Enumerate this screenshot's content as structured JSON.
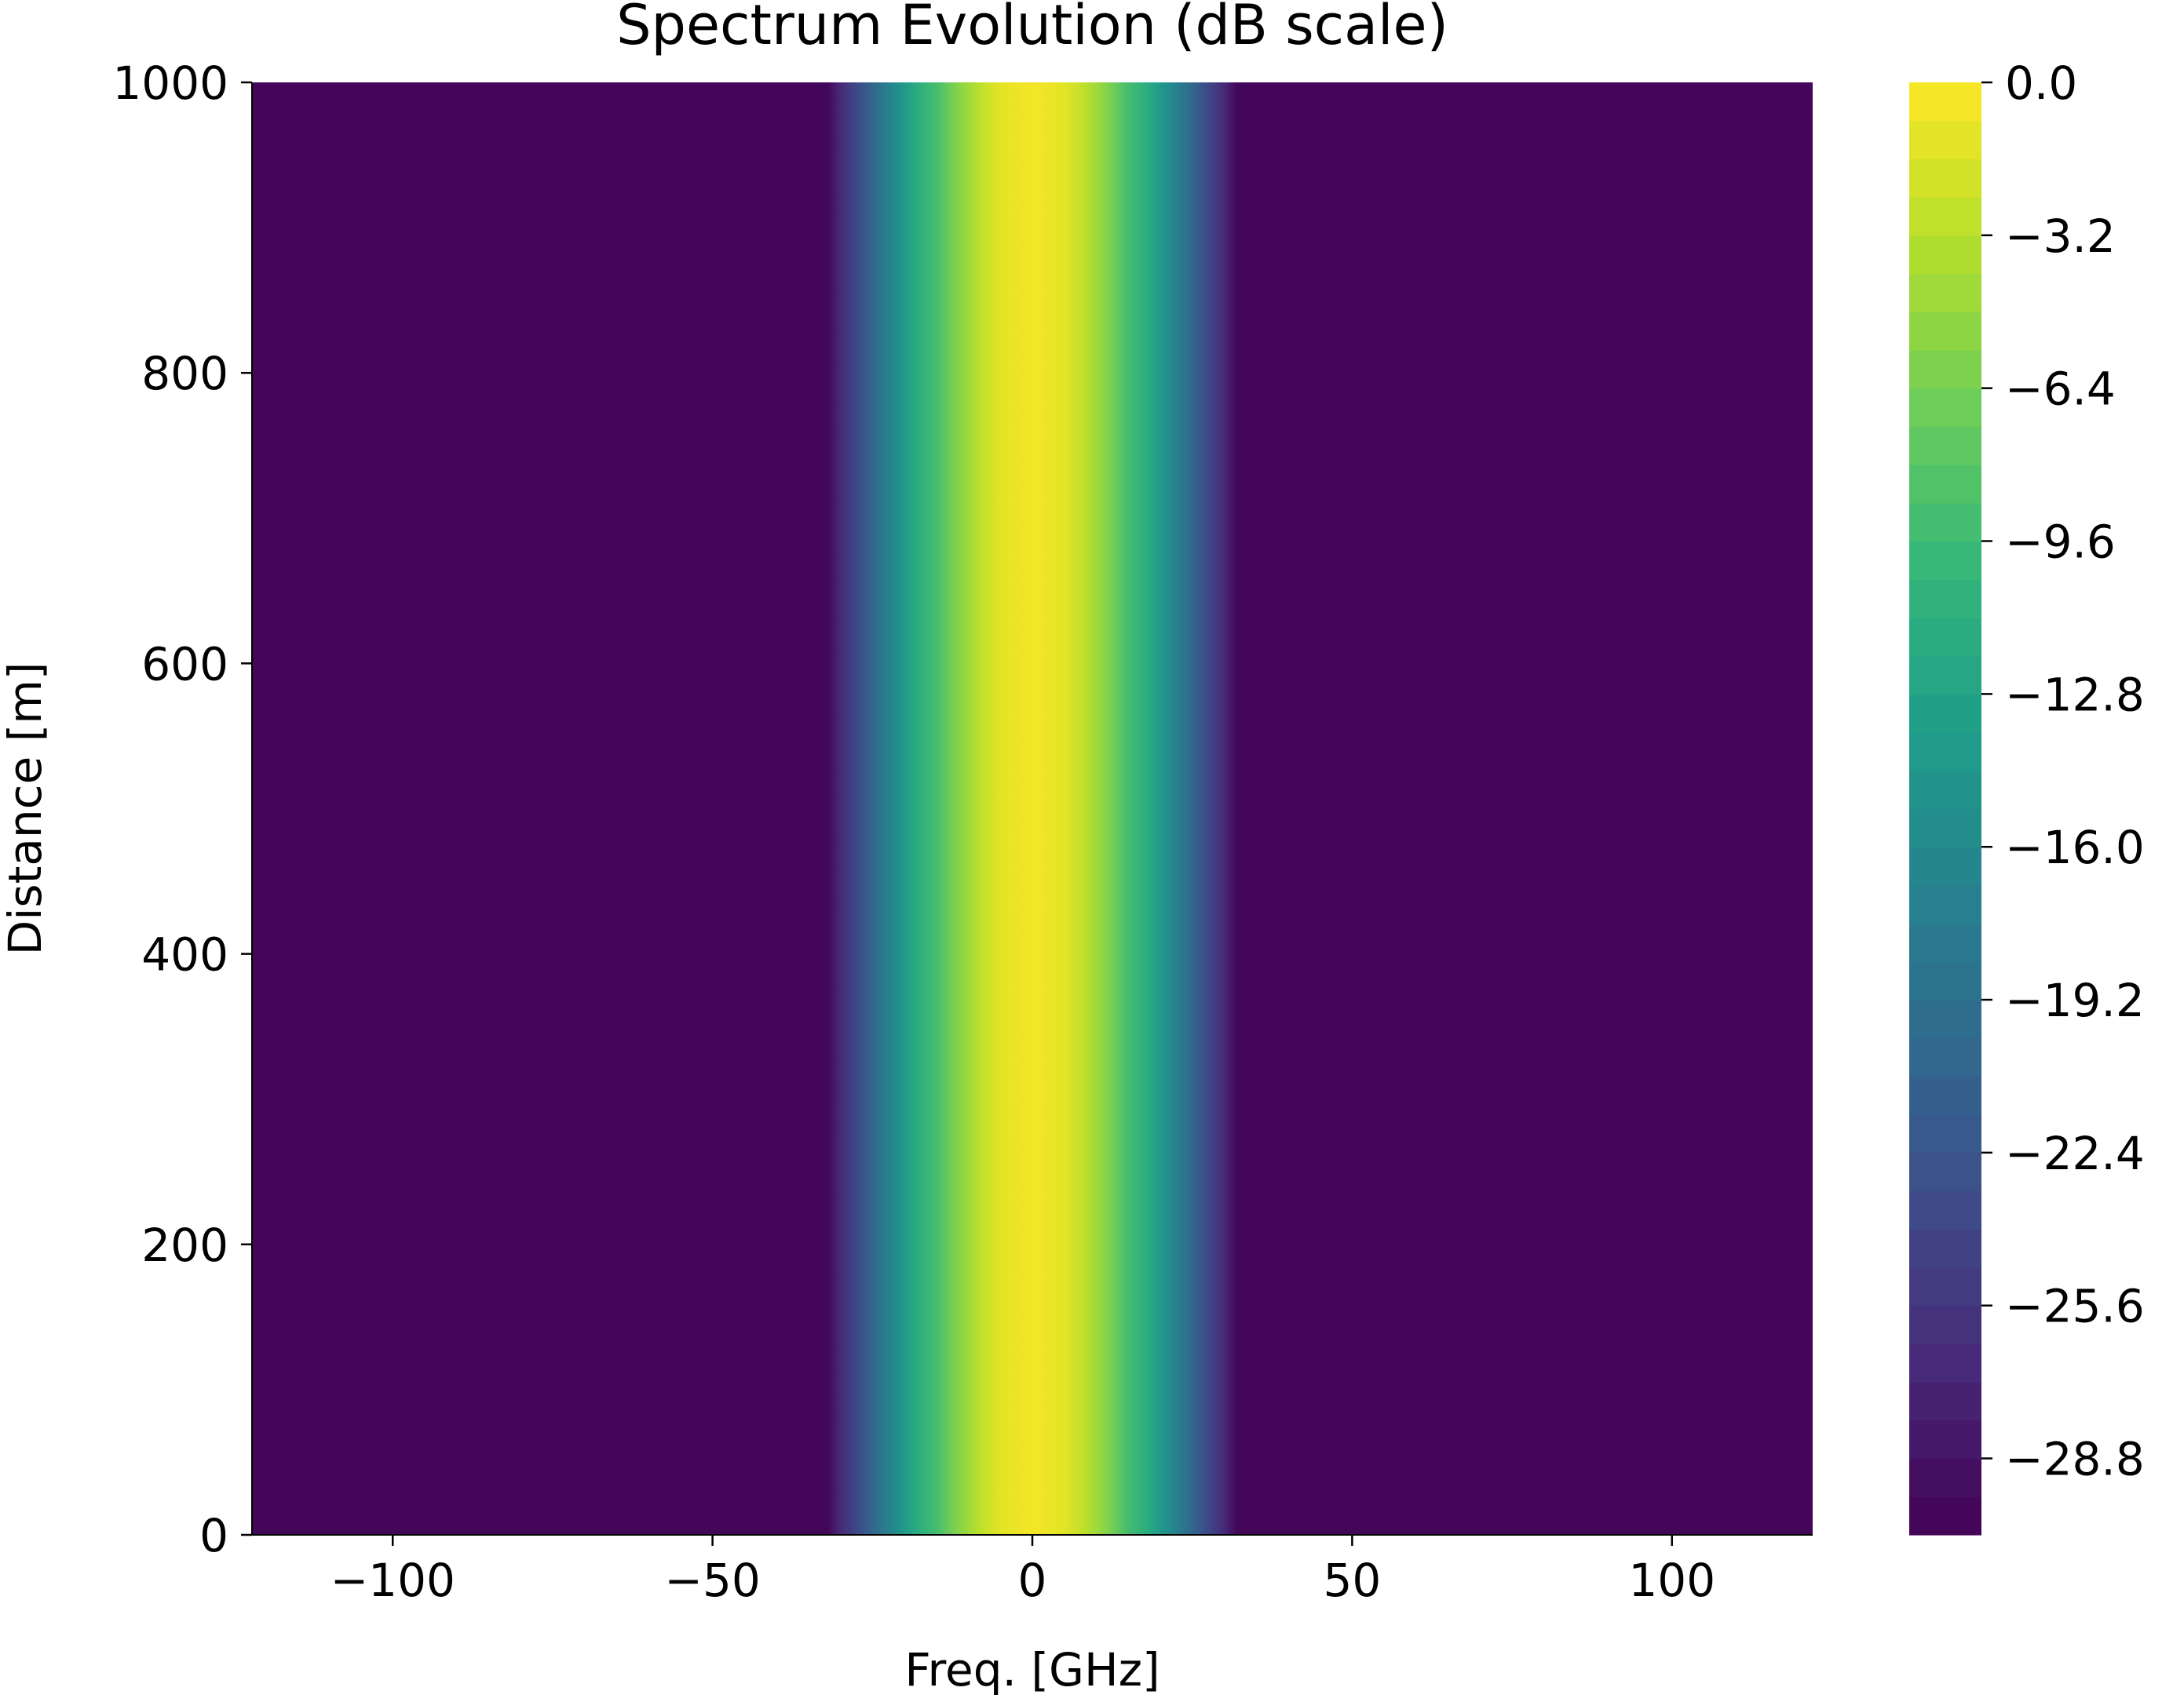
{
  "chart_data": {
    "type": "heatmap",
    "title": "Spectrum Evolution (dB scale)",
    "xlabel": "Freq. [GHz]",
    "ylabel": "Distance [m]",
    "xlim": [
      -122,
      122
    ],
    "ylim": [
      0,
      1000
    ],
    "x_ticks": [
      -100,
      -50,
      0,
      50,
      100
    ],
    "x_tick_labels": [
      "−100",
      "−50",
      "0",
      "50",
      "100"
    ],
    "y_ticks": [
      0,
      200,
      400,
      600,
      800,
      1000
    ],
    "y_tick_labels": [
      "0",
      "200",
      "400",
      "600",
      "800",
      "1000"
    ],
    "colorbar": {
      "colormap": "viridis",
      "range": [
        -30.4,
        0
      ],
      "levels": 38,
      "ticks": [
        0.0,
        -3.2,
        -6.4,
        -9.6,
        -12.8,
        -16.0,
        -19.2,
        -22.4,
        -25.6,
        -28.8
      ],
      "tick_labels": [
        "0.0",
        "−3.2",
        "−6.4",
        "−9.6",
        "−12.8",
        "−16.0",
        "−19.2",
        "−22.4",
        "−25.6",
        "−28.8"
      ]
    },
    "spectrum_profile_db": {
      "freq_ghz": [
        -32,
        -30,
        -28,
        -25,
        -22,
        -20,
        -18,
        -15,
        -12,
        -10,
        -8,
        -5,
        0,
        5,
        8,
        10,
        12,
        15,
        18,
        20,
        22,
        25,
        28,
        30,
        32
      ],
      "value_db": [
        -30.4,
        -27,
        -24,
        -20,
        -16.5,
        -14,
        -11.5,
        -9,
        -6.3,
        -4.5,
        -3,
        -1.2,
        0,
        -1.2,
        -3,
        -4.5,
        -6.3,
        -9,
        -11.5,
        -14,
        -16.5,
        -20,
        -24,
        -27,
        -30.4
      ],
      "floor_db": -30.4,
      "constant_over_distance": true
    }
  }
}
